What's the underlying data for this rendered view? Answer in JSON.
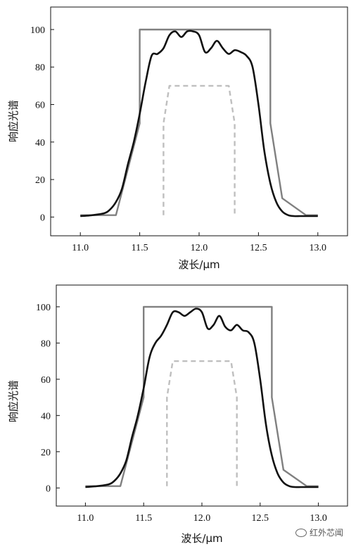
{
  "chart_data": [
    {
      "type": "line",
      "xlabel": "波长/μm",
      "ylabel": "响应光谱",
      "xlim": [
        10.75,
        13.25
      ],
      "ylim": [
        -10,
        112
      ],
      "xticks": [
        "11.0",
        "11.5",
        "12.0",
        "12.5",
        "13.0"
      ],
      "yticks": [
        "0",
        "20",
        "40",
        "60",
        "80",
        "100"
      ],
      "grid": false,
      "series": [
        {
          "style": "gray-solid",
          "color": "#808080",
          "x": [
            11.0,
            11.3,
            11.5,
            11.5,
            12.6,
            12.6,
            12.7,
            12.9,
            13.0
          ],
          "y": [
            1,
            1,
            50,
            100,
            100,
            50,
            10,
            1,
            1
          ]
        },
        {
          "style": "black-smooth",
          "color": "#111111",
          "x": [
            11.0,
            11.1,
            11.2,
            11.25,
            11.3,
            11.35,
            11.4,
            11.45,
            11.5,
            11.55,
            11.6,
            11.65,
            11.7,
            11.75,
            11.8,
            11.85,
            11.9,
            11.95,
            12.0,
            12.05,
            12.1,
            12.15,
            12.2,
            12.25,
            12.3,
            12.35,
            12.4,
            12.45,
            12.5,
            12.55,
            12.6,
            12.65,
            12.7,
            12.75,
            12.8,
            12.85,
            12.9,
            13.0
          ],
          "y": [
            0.5,
            1,
            2,
            4,
            8,
            15,
            28,
            40,
            55,
            72,
            86,
            87,
            90,
            97,
            99,
            96,
            99,
            99,
            97,
            88,
            90,
            94,
            90,
            87,
            89,
            88,
            86,
            80,
            60,
            35,
            18,
            8,
            3,
            1,
            0.5,
            0.5,
            0.5,
            0.5
          ]
        },
        {
          "style": "gray-dashed",
          "color": "#bfbfbf",
          "x": [
            11.7,
            11.7,
            11.75,
            12.25,
            12.3,
            12.3
          ],
          "y": [
            1,
            50,
            70,
            70,
            50,
            1
          ]
        }
      ]
    },
    {
      "type": "line",
      "xlabel": "波长/μm",
      "ylabel": "响应光谱",
      "xlim": [
        10.75,
        13.25
      ],
      "ylim": [
        -10,
        112
      ],
      "xticks": [
        "11.0",
        "11.5",
        "12.0",
        "12.5",
        "13.0"
      ],
      "yticks": [
        "0",
        "20",
        "40",
        "60",
        "80",
        "100"
      ],
      "grid": false,
      "series": [
        {
          "style": "gray-solid",
          "color": "#808080",
          "x": [
            11.0,
            11.3,
            11.5,
            11.5,
            12.6,
            12.6,
            12.7,
            12.9,
            13.0
          ],
          "y": [
            1,
            1,
            50,
            100,
            100,
            50,
            10,
            1,
            1
          ]
        },
        {
          "style": "black-smooth",
          "color": "#111111",
          "x": [
            11.0,
            11.1,
            11.2,
            11.25,
            11.3,
            11.35,
            11.4,
            11.45,
            11.5,
            11.55,
            11.6,
            11.65,
            11.7,
            11.75,
            11.8,
            11.85,
            11.9,
            11.95,
            12.0,
            12.05,
            12.1,
            12.15,
            12.2,
            12.25,
            12.3,
            12.35,
            12.4,
            12.45,
            12.5,
            12.55,
            12.6,
            12.65,
            12.7,
            12.75,
            12.8,
            12.85,
            12.9,
            13.0
          ],
          "y": [
            0.5,
            1,
            2,
            4,
            8,
            15,
            28,
            40,
            55,
            72,
            80,
            84,
            90,
            97,
            97,
            95,
            97,
            99,
            97,
            88,
            90,
            95,
            89,
            87,
            90,
            87,
            86,
            80,
            60,
            35,
            18,
            8,
            3,
            1,
            0.5,
            0.5,
            0.5,
            0.5
          ]
        },
        {
          "style": "gray-dashed",
          "color": "#bfbfbf",
          "x": [
            11.7,
            11.7,
            11.75,
            12.25,
            12.3,
            12.3
          ],
          "y": [
            1,
            50,
            70,
            70,
            50,
            1
          ]
        }
      ]
    }
  ],
  "watermark": {
    "text": "红外芯闻",
    "icon": "wechat-icon"
  }
}
